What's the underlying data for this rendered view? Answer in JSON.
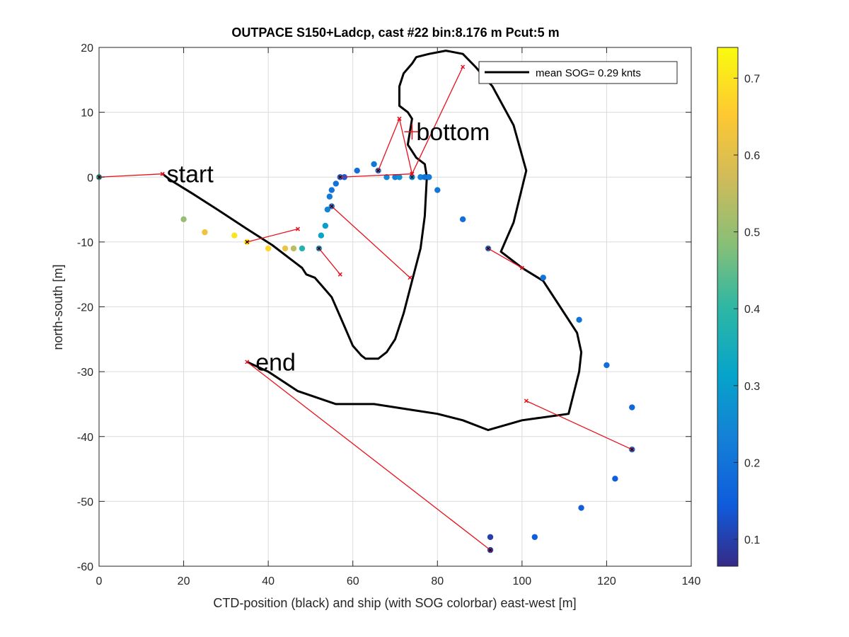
{
  "chart_data": {
    "type": "scatter",
    "title": "OUTPACE S150+Ladcp, cast #22 bin:8.176 m  Pcut:5 m",
    "xlabel": "CTD-position (black) and ship (with SOG colorbar) east-west [m]",
    "ylabel": "north-south [m]",
    "xlim": [
      0,
      140
    ],
    "ylim": [
      -60,
      20
    ],
    "xticks": [
      0,
      20,
      40,
      60,
      80,
      100,
      120,
      140
    ],
    "yticks": [
      20,
      10,
      0,
      -10,
      -20,
      -30,
      -40,
      -50,
      -60
    ],
    "grid": true,
    "legend": {
      "position": "top-right",
      "entries": [
        "mean SOG=  0.29 knts"
      ]
    },
    "colorbar": {
      "label": "",
      "range": [
        0.065,
        0.74
      ],
      "ticks": [
        0.1,
        0.2,
        0.3,
        0.4,
        0.5,
        0.6,
        0.7
      ],
      "colormap": "parula"
    },
    "series": [
      {
        "name": "mean SOG=  0.29 knts",
        "kind": "ctd-track",
        "color": "#000000",
        "x": [
          15,
          17,
          22,
          28,
          35,
          41,
          45,
          47,
          48,
          49,
          51,
          53,
          55,
          56,
          57,
          58,
          59,
          60,
          62,
          63,
          66,
          68,
          70,
          72,
          74,
          76,
          77,
          77.5,
          77,
          75,
          74,
          73,
          73.5,
          74,
          73,
          71,
          71,
          72,
          74,
          75,
          78,
          82,
          86,
          89,
          93,
          98,
          101,
          98,
          96,
          95,
          100,
          105,
          109,
          113,
          114,
          113.5,
          111,
          100,
          92,
          86,
          80,
          75,
          65,
          56,
          47,
          40,
          35
        ],
        "y": [
          0.5,
          -0.5,
          -2.5,
          -5,
          -8,
          -10.5,
          -12.5,
          -13.5,
          -14,
          -15,
          -15.5,
          -17,
          -18.5,
          -20,
          -21.5,
          -23,
          -24.5,
          -26,
          -27.5,
          -28,
          -28,
          -27,
          -25,
          -21,
          -16,
          -11,
          -6,
          0,
          2,
          3,
          4,
          5,
          7,
          9,
          10,
          11,
          14,
          16,
          17.5,
          18.5,
          19,
          19.5,
          19,
          17,
          14,
          8,
          1,
          -7,
          -10,
          -11.5,
          -14,
          -16,
          -20,
          -24,
          -27,
          -30,
          -36.5,
          -37.5,
          -39,
          -37.5,
          -36.5,
          -36,
          -35,
          -35,
          -33,
          -30,
          -28.5
        ]
      },
      {
        "name": "",
        "kind": "ship-sog-points",
        "points": [
          {
            "x": 0,
            "y": 0,
            "sog": 0.39
          },
          {
            "x": 20,
            "y": -6.5,
            "sog": 0.5
          },
          {
            "x": 25,
            "y": -8.5,
            "sog": 0.62
          },
          {
            "x": 32,
            "y": -9,
            "sog": 0.7
          },
          {
            "x": 35,
            "y": -10,
            "sog": 0.73
          },
          {
            "x": 40,
            "y": -11,
            "sog": 0.68
          },
          {
            "x": 44,
            "y": -11,
            "sog": 0.62
          },
          {
            "x": 46,
            "y": -11,
            "sog": 0.55
          },
          {
            "x": 48,
            "y": -11,
            "sog": 0.38
          },
          {
            "x": 52,
            "y": -11,
            "sog": 0.3
          },
          {
            "x": 52.5,
            "y": -9,
            "sog": 0.32
          },
          {
            "x": 53.5,
            "y": -7.5,
            "sog": 0.3
          },
          {
            "x": 54,
            "y": -5,
            "sog": 0.24
          },
          {
            "x": 54.5,
            "y": -3,
            "sog": 0.22
          },
          {
            "x": 55,
            "y": -2,
            "sog": 0.2
          },
          {
            "x": 55,
            "y": -4.5,
            "sog": 0.22
          },
          {
            "x": 56,
            "y": -1,
            "sog": 0.2
          },
          {
            "x": 57,
            "y": 0,
            "sog": 0.18
          },
          {
            "x": 58,
            "y": 0,
            "sog": 0.15
          },
          {
            "x": 61,
            "y": 1,
            "sog": 0.19
          },
          {
            "x": 65,
            "y": 2,
            "sog": 0.21
          },
          {
            "x": 66,
            "y": 1,
            "sog": 0.22
          },
          {
            "x": 68,
            "y": 0,
            "sog": 0.25
          },
          {
            "x": 70,
            "y": 0,
            "sog": 0.23
          },
          {
            "x": 71,
            "y": 0,
            "sog": 0.27
          },
          {
            "x": 74,
            "y": 0,
            "sog": 0.26
          },
          {
            "x": 76,
            "y": 0,
            "sog": 0.24
          },
          {
            "x": 77,
            "y": 0,
            "sog": 0.2
          },
          {
            "x": 78,
            "y": 0,
            "sog": 0.22
          },
          {
            "x": 80,
            "y": -2,
            "sog": 0.21
          },
          {
            "x": 86,
            "y": -6.5,
            "sog": 0.19
          },
          {
            "x": 92,
            "y": -11,
            "sog": 0.2
          },
          {
            "x": 105,
            "y": -15.5,
            "sog": 0.2
          },
          {
            "x": 113.5,
            "y": -22,
            "sog": 0.2
          },
          {
            "x": 120,
            "y": -29,
            "sog": 0.19
          },
          {
            "x": 126,
            "y": -35.5,
            "sog": 0.17
          },
          {
            "x": 126,
            "y": -42,
            "sog": 0.18
          },
          {
            "x": 122,
            "y": -46.5,
            "sog": 0.15
          },
          {
            "x": 114,
            "y": -51,
            "sog": 0.15
          },
          {
            "x": 103,
            "y": -55.5,
            "sog": 0.15
          },
          {
            "x": 92.5,
            "y": -55.5,
            "sog": 0.1
          },
          {
            "x": 92.5,
            "y": -57.5,
            "sog": 0.1
          }
        ]
      },
      {
        "name": "",
        "kind": "connection-lines",
        "color": "#e8101c",
        "segments": [
          [
            [
              0,
              0
            ],
            [
              15,
              0.5
            ]
          ],
          [
            [
              35,
              -10
            ],
            [
              47,
              -8
            ]
          ],
          [
            [
              52,
              -11
            ],
            [
              57,
              -15
            ]
          ],
          [
            [
              55,
              -4.5
            ],
            [
              73.5,
              -15.5
            ]
          ],
          [
            [
              57,
              0
            ],
            [
              74,
              0.5
            ]
          ],
          [
            [
              66,
              1
            ],
            [
              71,
              9
            ]
          ],
          [
            [
              71,
              9
            ],
            [
              74,
              0.5
            ]
          ],
          [
            [
              74,
              0.5
            ],
            [
              86,
              17
            ]
          ],
          [
            [
              92,
              -11
            ],
            [
              100,
              -14
            ]
          ],
          [
            [
              101,
              -34.5
            ],
            [
              126,
              -42
            ]
          ],
          [
            [
              35,
              -28.5
            ],
            [
              92.5,
              -57.5
            ]
          ]
        ]
      }
    ],
    "annotations": [
      {
        "text": "start",
        "x": 16,
        "y": 0.5
      },
      {
        "text": "bottom",
        "x": 75,
        "y": 7
      },
      {
        "text": "end",
        "x": 37,
        "y": -28.5
      }
    ],
    "markers": [
      {
        "kind": "bottom-cross",
        "x": 74,
        "y": 7,
        "color": "#e8101c"
      }
    ]
  }
}
